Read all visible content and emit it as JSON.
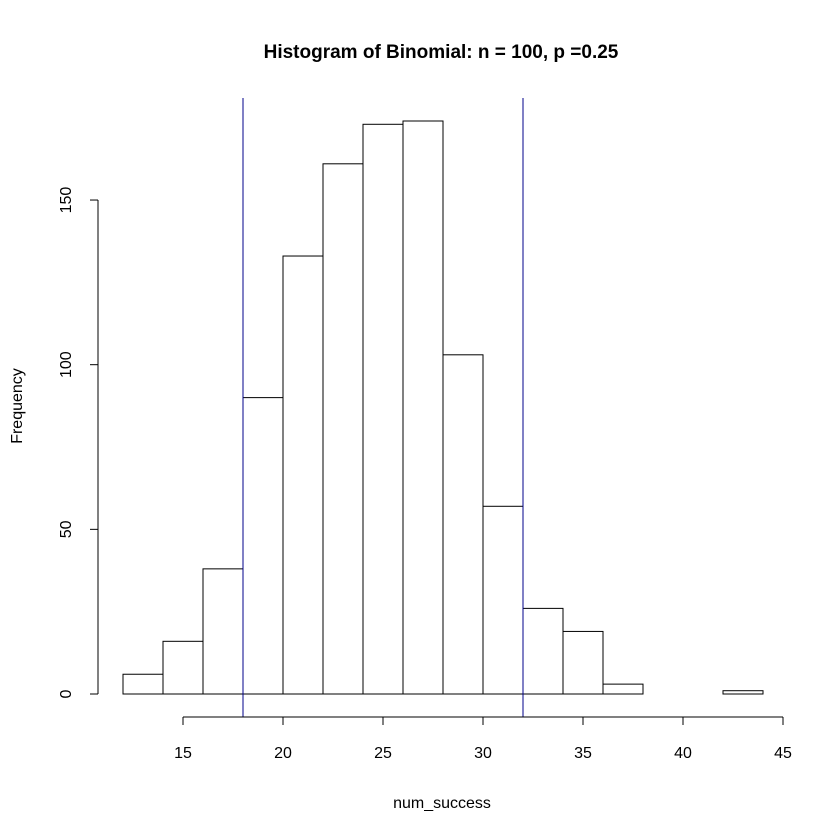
{
  "chart_data": {
    "type": "bar",
    "title": "Histogram of Binomial: n = 100, p =0.25",
    "xlabel": "num_success",
    "ylabel": "Frequency",
    "bin_edges": [
      12,
      14,
      16,
      18,
      20,
      22,
      24,
      26,
      28,
      30,
      32,
      34,
      36,
      38,
      40,
      42,
      44
    ],
    "values": [
      6,
      16,
      38,
      90,
      133,
      161,
      173,
      174,
      103,
      57,
      26,
      19,
      3,
      0,
      0,
      1
    ],
    "x_ticks": [
      15,
      20,
      25,
      30,
      35,
      40,
      45
    ],
    "y_ticks": [
      0,
      50,
      100,
      150
    ],
    "xlim": [
      12,
      44
    ],
    "ylim": [
      0,
      174
    ],
    "vlines": [
      18,
      32
    ],
    "vline_color": "#00008B",
    "bar_fill": "#ffffff",
    "bar_stroke": "#000000",
    "grid": false
  }
}
